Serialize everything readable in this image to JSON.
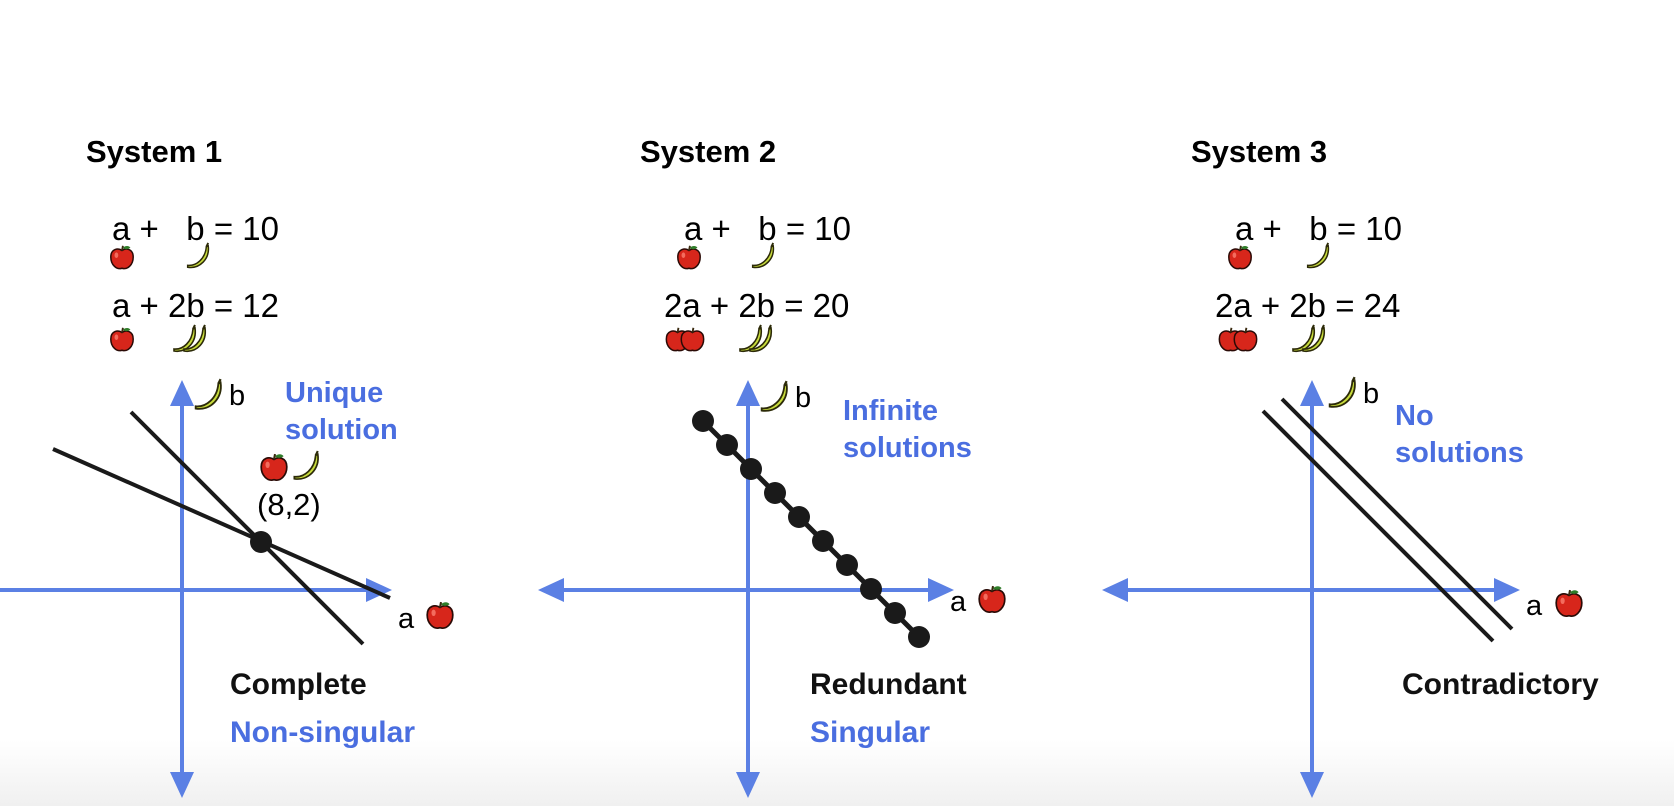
{
  "systems": [
    {
      "title": "System 1",
      "eq1": "a +   b = 10",
      "eq2": "a + 2b = 12",
      "axis_b": "b",
      "axis_a": "a",
      "note_line1": "Unique",
      "note_line2": "solution",
      "point_label": "(8,2)",
      "class_black": "Complete",
      "class_blue": "Non-singular"
    },
    {
      "title": "System 2",
      "eq1": "a +   b = 10",
      "eq2": "2a + 2b = 20",
      "axis_b": "b",
      "axis_a": "a",
      "note_line1": "Infinite",
      "note_line2": "solutions",
      "class_black": "Redundant",
      "class_blue": "Singular"
    },
    {
      "title": "System 3",
      "eq1": "a +   b = 10",
      "eq2": "2a + 2b = 24",
      "axis_b": "b",
      "axis_a": "a",
      "note_line1": "No",
      "note_line2": "solutions",
      "class_black": "Contradictory"
    }
  ],
  "icons": {
    "apple": "apple-icon",
    "banana": "banana-icon"
  },
  "colors": {
    "axis": "#5b80e4",
    "note": "#4a6ee0",
    "line": "#1a1a1a",
    "apple": "#d7261b",
    "banana": "#c8dc3c"
  }
}
